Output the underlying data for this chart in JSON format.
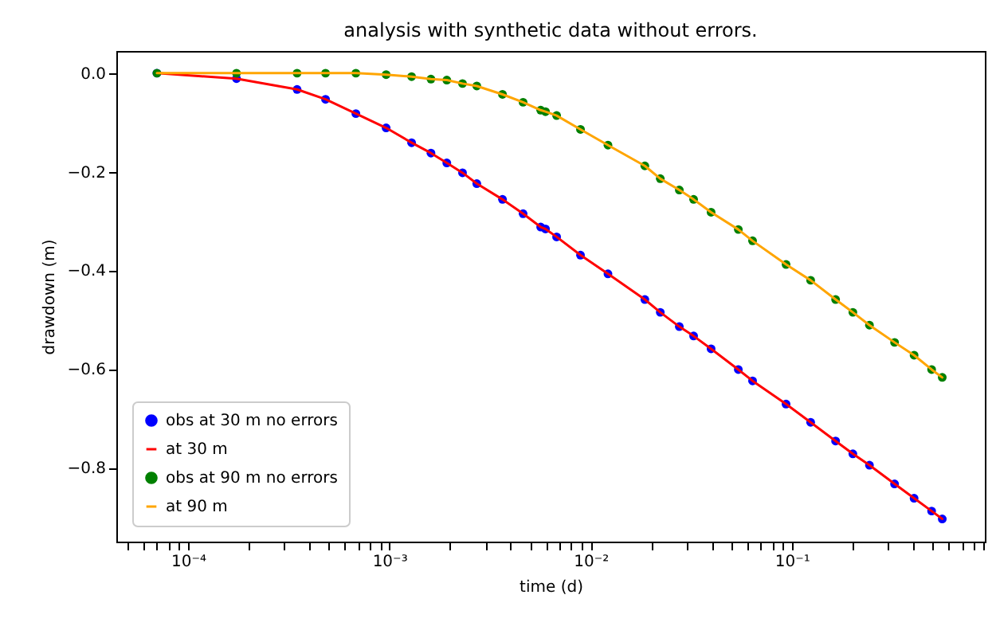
{
  "chart_data": {
    "type": "line",
    "title": "analysis with synthetic data without errors.",
    "xlabel": "time (d)",
    "ylabel": "drawdown (m)",
    "log": "x",
    "legend": "bottom left",
    "grid": false,
    "xlim": [
      4.4e-05,
      0.91
    ],
    "ylim": [
      -0.95,
      0.045
    ],
    "xticks": [
      {
        "value": 5e-05,
        "label": null
      },
      {
        "value": 6e-05,
        "label": null
      },
      {
        "value": 7e-05,
        "label": null
      },
      {
        "value": 8e-05,
        "label": null
      },
      {
        "value": 9e-05,
        "label": null
      },
      {
        "value": 0.0001,
        "label": "10⁻⁴"
      },
      {
        "value": 0.0002,
        "label": null
      },
      {
        "value": 0.0003,
        "label": null
      },
      {
        "value": 0.0004,
        "label": null
      },
      {
        "value": 0.0005,
        "label": null
      },
      {
        "value": 0.0006,
        "label": null
      },
      {
        "value": 0.0007,
        "label": null
      },
      {
        "value": 0.0008,
        "label": null
      },
      {
        "value": 0.0009,
        "label": null
      },
      {
        "value": 0.001,
        "label": "10⁻³"
      },
      {
        "value": 0.002,
        "label": null
      },
      {
        "value": 0.003,
        "label": null
      },
      {
        "value": 0.004,
        "label": null
      },
      {
        "value": 0.005,
        "label": null
      },
      {
        "value": 0.006,
        "label": null
      },
      {
        "value": 0.007,
        "label": null
      },
      {
        "value": 0.008,
        "label": null
      },
      {
        "value": 0.009,
        "label": null
      },
      {
        "value": 0.01,
        "label": "10⁻²"
      },
      {
        "value": 0.02,
        "label": null
      },
      {
        "value": 0.03,
        "label": null
      },
      {
        "value": 0.04,
        "label": null
      },
      {
        "value": 0.05,
        "label": null
      },
      {
        "value": 0.06,
        "label": null
      },
      {
        "value": 0.07,
        "label": null
      },
      {
        "value": 0.08,
        "label": null
      },
      {
        "value": 0.09,
        "label": null
      },
      {
        "value": 0.1,
        "label": "10⁻¹"
      },
      {
        "value": 0.2,
        "label": null
      },
      {
        "value": 0.3,
        "label": null
      },
      {
        "value": 0.4,
        "label": null
      },
      {
        "value": 0.5,
        "label": null
      },
      {
        "value": 0.6,
        "label": null
      },
      {
        "value": 0.7,
        "label": null
      },
      {
        "value": 0.8,
        "label": null
      },
      {
        "value": 0.9,
        "label": null
      }
    ],
    "yticks": [
      {
        "value": 0,
        "label": "0.0"
      },
      {
        "value": -0.2,
        "label": "−0.2"
      },
      {
        "value": -0.4,
        "label": "−0.4"
      },
      {
        "value": -0.6,
        "label": "−0.6"
      },
      {
        "value": -0.8,
        "label": "−0.8"
      }
    ],
    "x": [
      7e-05,
      0.000174,
      0.000348,
      0.000482,
      0.000682,
      0.000964,
      0.00129,
      0.00161,
      0.00193,
      0.00231,
      0.00272,
      0.00365,
      0.00462,
      0.00565,
      0.00597,
      0.00678,
      0.00891,
      0.0122,
      0.0186,
      0.0222,
      0.0276,
      0.0325,
      0.0397,
      0.0542,
      0.0638,
      0.0936,
      0.124,
      0.165,
      0.201,
      0.243,
      0.324,
      0.405,
      0.495,
      0.559
    ],
    "series": [
      {
        "name": "obs at 30 m no errors",
        "type": "scatter",
        "marker": "circle",
        "color": "#0000ff",
        "values": [
          0,
          -0.011,
          -0.033,
          -0.053,
          -0.082,
          -0.111,
          -0.141,
          -0.162,
          -0.182,
          -0.202,
          -0.224,
          -0.256,
          -0.285,
          -0.312,
          -0.316,
          -0.332,
          -0.369,
          -0.407,
          -0.459,
          -0.485,
          -0.514,
          -0.533,
          -0.559,
          -0.601,
          -0.624,
          -0.671,
          -0.708,
          -0.746,
          -0.772,
          -0.795,
          -0.833,
          -0.862,
          -0.888,
          -0.904
        ]
      },
      {
        "name": "at 30 m",
        "type": "line",
        "marker": "none",
        "line_style": "solid",
        "color": "#ff0000",
        "values": [
          0,
          -0.011,
          -0.033,
          -0.053,
          -0.082,
          -0.111,
          -0.141,
          -0.162,
          -0.182,
          -0.202,
          -0.224,
          -0.256,
          -0.285,
          -0.312,
          -0.316,
          -0.332,
          -0.369,
          -0.407,
          -0.459,
          -0.485,
          -0.514,
          -0.533,
          -0.559,
          -0.601,
          -0.624,
          -0.671,
          -0.708,
          -0.746,
          -0.772,
          -0.795,
          -0.833,
          -0.862,
          -0.888,
          -0.904
        ]
      },
      {
        "name": "obs at 90 m no errors",
        "type": "scatter",
        "marker": "circle",
        "color": "#008000",
        "values": [
          0,
          0,
          0,
          0,
          0,
          -0.003,
          -0.007,
          -0.012,
          -0.014,
          -0.021,
          -0.026,
          -0.043,
          -0.059,
          -0.075,
          -0.078,
          -0.086,
          -0.114,
          -0.146,
          -0.188,
          -0.214,
          -0.237,
          -0.256,
          -0.282,
          -0.317,
          -0.34,
          -0.388,
          -0.42,
          -0.459,
          -0.485,
          -0.511,
          -0.546,
          -0.572,
          -0.601,
          -0.617
        ]
      },
      {
        "name": "at 90 m",
        "type": "line",
        "marker": "none",
        "line_style": "solid",
        "color": "#ffa500",
        "values": [
          0,
          0,
          0,
          0,
          0,
          -0.003,
          -0.007,
          -0.012,
          -0.014,
          -0.021,
          -0.026,
          -0.043,
          -0.059,
          -0.075,
          -0.078,
          -0.086,
          -0.114,
          -0.146,
          -0.188,
          -0.214,
          -0.237,
          -0.256,
          -0.282,
          -0.317,
          -0.34,
          -0.388,
          -0.42,
          -0.459,
          -0.485,
          -0.511,
          -0.546,
          -0.572,
          -0.601,
          -0.617
        ]
      }
    ]
  }
}
